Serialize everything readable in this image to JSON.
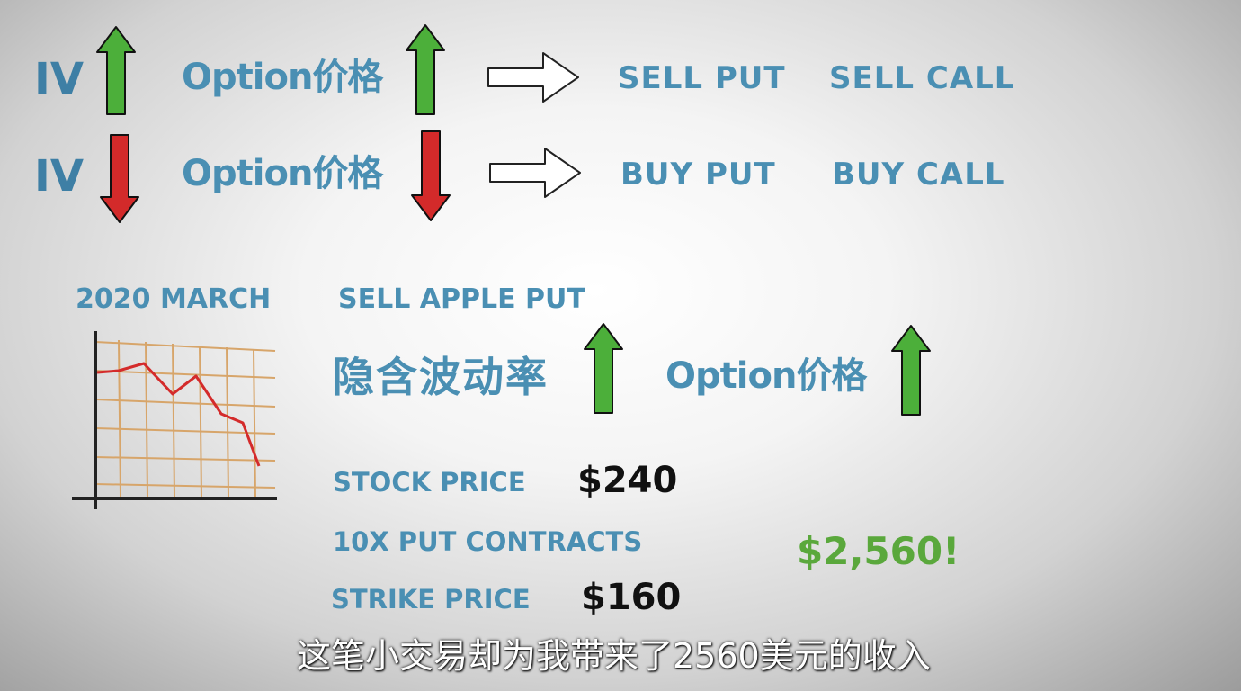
{
  "row1": {
    "iv": "IV",
    "option_price": "Option价格",
    "sell_put": "SELL PUT",
    "sell_call": "SELL CALL"
  },
  "row2": {
    "iv": "IV",
    "option_price": "Option价格",
    "buy_put": "BUY PUT",
    "buy_call": "BUY CALL"
  },
  "example": {
    "date": "2020 MARCH",
    "action": "SELL APPLE PUT",
    "implied_vol": "隐含波动率",
    "option_price": "Option价格",
    "stock_price_label": "STOCK PRICE",
    "stock_price_value": "$240",
    "contracts": "10X  PUT CONTRACTS",
    "strike_price_label": "STRIKE PRICE",
    "strike_price_value": "$160",
    "income": "$2,560!"
  },
  "subtitle": "这笔小交易却为我带来了2560美元的收入",
  "colors": {
    "text_blue": "#4a8fb3",
    "arrow_up": "#4caf3a",
    "arrow_down": "#d32a2a",
    "income_green": "#5aa83c"
  }
}
